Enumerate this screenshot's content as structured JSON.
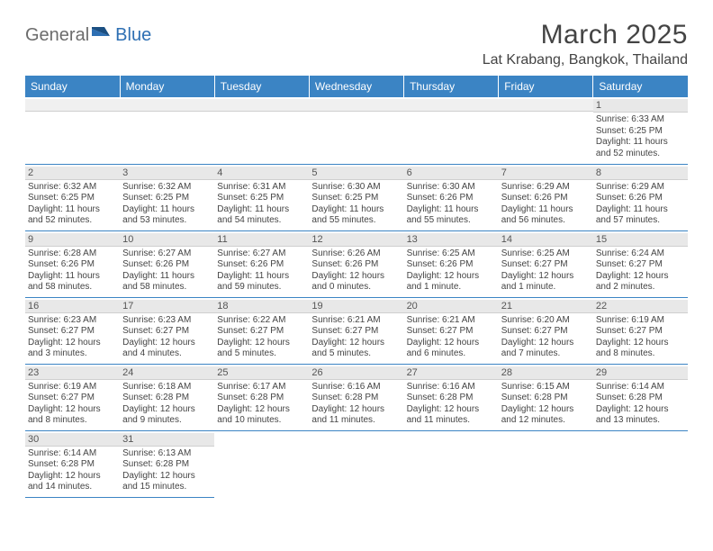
{
  "brand": {
    "part1": "General",
    "part2": "Blue"
  },
  "title": "March 2025",
  "location": "Lat Krabang, Bangkok, Thailand",
  "colors": {
    "header_bg": "#3b84c4",
    "header_text": "#ffffff",
    "daynum_bg": "#e8e8e8",
    "border": "#3b84c4",
    "brand_gray": "#6c6c6c",
    "brand_blue": "#2d6fb3",
    "page_bg": "#ffffff",
    "text": "#444444"
  },
  "day_headers": [
    "Sunday",
    "Monday",
    "Tuesday",
    "Wednesday",
    "Thursday",
    "Friday",
    "Saturday"
  ],
  "weeks": [
    [
      null,
      null,
      null,
      null,
      null,
      null,
      {
        "n": "1",
        "sr": "Sunrise: 6:33 AM",
        "ss": "Sunset: 6:25 PM",
        "dl1": "Daylight: 11 hours",
        "dl2": "and 52 minutes."
      }
    ],
    [
      {
        "n": "2",
        "sr": "Sunrise: 6:32 AM",
        "ss": "Sunset: 6:25 PM",
        "dl1": "Daylight: 11 hours",
        "dl2": "and 52 minutes."
      },
      {
        "n": "3",
        "sr": "Sunrise: 6:32 AM",
        "ss": "Sunset: 6:25 PM",
        "dl1": "Daylight: 11 hours",
        "dl2": "and 53 minutes."
      },
      {
        "n": "4",
        "sr": "Sunrise: 6:31 AM",
        "ss": "Sunset: 6:25 PM",
        "dl1": "Daylight: 11 hours",
        "dl2": "and 54 minutes."
      },
      {
        "n": "5",
        "sr": "Sunrise: 6:30 AM",
        "ss": "Sunset: 6:25 PM",
        "dl1": "Daylight: 11 hours",
        "dl2": "and 55 minutes."
      },
      {
        "n": "6",
        "sr": "Sunrise: 6:30 AM",
        "ss": "Sunset: 6:26 PM",
        "dl1": "Daylight: 11 hours",
        "dl2": "and 55 minutes."
      },
      {
        "n": "7",
        "sr": "Sunrise: 6:29 AM",
        "ss": "Sunset: 6:26 PM",
        "dl1": "Daylight: 11 hours",
        "dl2": "and 56 minutes."
      },
      {
        "n": "8",
        "sr": "Sunrise: 6:29 AM",
        "ss": "Sunset: 6:26 PM",
        "dl1": "Daylight: 11 hours",
        "dl2": "and 57 minutes."
      }
    ],
    [
      {
        "n": "9",
        "sr": "Sunrise: 6:28 AM",
        "ss": "Sunset: 6:26 PM",
        "dl1": "Daylight: 11 hours",
        "dl2": "and 58 minutes."
      },
      {
        "n": "10",
        "sr": "Sunrise: 6:27 AM",
        "ss": "Sunset: 6:26 PM",
        "dl1": "Daylight: 11 hours",
        "dl2": "and 58 minutes."
      },
      {
        "n": "11",
        "sr": "Sunrise: 6:27 AM",
        "ss": "Sunset: 6:26 PM",
        "dl1": "Daylight: 11 hours",
        "dl2": "and 59 minutes."
      },
      {
        "n": "12",
        "sr": "Sunrise: 6:26 AM",
        "ss": "Sunset: 6:26 PM",
        "dl1": "Daylight: 12 hours",
        "dl2": "and 0 minutes."
      },
      {
        "n": "13",
        "sr": "Sunrise: 6:25 AM",
        "ss": "Sunset: 6:26 PM",
        "dl1": "Daylight: 12 hours",
        "dl2": "and 1 minute."
      },
      {
        "n": "14",
        "sr": "Sunrise: 6:25 AM",
        "ss": "Sunset: 6:27 PM",
        "dl1": "Daylight: 12 hours",
        "dl2": "and 1 minute."
      },
      {
        "n": "15",
        "sr": "Sunrise: 6:24 AM",
        "ss": "Sunset: 6:27 PM",
        "dl1": "Daylight: 12 hours",
        "dl2": "and 2 minutes."
      }
    ],
    [
      {
        "n": "16",
        "sr": "Sunrise: 6:23 AM",
        "ss": "Sunset: 6:27 PM",
        "dl1": "Daylight: 12 hours",
        "dl2": "and 3 minutes."
      },
      {
        "n": "17",
        "sr": "Sunrise: 6:23 AM",
        "ss": "Sunset: 6:27 PM",
        "dl1": "Daylight: 12 hours",
        "dl2": "and 4 minutes."
      },
      {
        "n": "18",
        "sr": "Sunrise: 6:22 AM",
        "ss": "Sunset: 6:27 PM",
        "dl1": "Daylight: 12 hours",
        "dl2": "and 5 minutes."
      },
      {
        "n": "19",
        "sr": "Sunrise: 6:21 AM",
        "ss": "Sunset: 6:27 PM",
        "dl1": "Daylight: 12 hours",
        "dl2": "and 5 minutes."
      },
      {
        "n": "20",
        "sr": "Sunrise: 6:21 AM",
        "ss": "Sunset: 6:27 PM",
        "dl1": "Daylight: 12 hours",
        "dl2": "and 6 minutes."
      },
      {
        "n": "21",
        "sr": "Sunrise: 6:20 AM",
        "ss": "Sunset: 6:27 PM",
        "dl1": "Daylight: 12 hours",
        "dl2": "and 7 minutes."
      },
      {
        "n": "22",
        "sr": "Sunrise: 6:19 AM",
        "ss": "Sunset: 6:27 PM",
        "dl1": "Daylight: 12 hours",
        "dl2": "and 8 minutes."
      }
    ],
    [
      {
        "n": "23",
        "sr": "Sunrise: 6:19 AM",
        "ss": "Sunset: 6:27 PM",
        "dl1": "Daylight: 12 hours",
        "dl2": "and 8 minutes."
      },
      {
        "n": "24",
        "sr": "Sunrise: 6:18 AM",
        "ss": "Sunset: 6:28 PM",
        "dl1": "Daylight: 12 hours",
        "dl2": "and 9 minutes."
      },
      {
        "n": "25",
        "sr": "Sunrise: 6:17 AM",
        "ss": "Sunset: 6:28 PM",
        "dl1": "Daylight: 12 hours",
        "dl2": "and 10 minutes."
      },
      {
        "n": "26",
        "sr": "Sunrise: 6:16 AM",
        "ss": "Sunset: 6:28 PM",
        "dl1": "Daylight: 12 hours",
        "dl2": "and 11 minutes."
      },
      {
        "n": "27",
        "sr": "Sunrise: 6:16 AM",
        "ss": "Sunset: 6:28 PM",
        "dl1": "Daylight: 12 hours",
        "dl2": "and 11 minutes."
      },
      {
        "n": "28",
        "sr": "Sunrise: 6:15 AM",
        "ss": "Sunset: 6:28 PM",
        "dl1": "Daylight: 12 hours",
        "dl2": "and 12 minutes."
      },
      {
        "n": "29",
        "sr": "Sunrise: 6:14 AM",
        "ss": "Sunset: 6:28 PM",
        "dl1": "Daylight: 12 hours",
        "dl2": "and 13 minutes."
      }
    ],
    [
      {
        "n": "30",
        "sr": "Sunrise: 6:14 AM",
        "ss": "Sunset: 6:28 PM",
        "dl1": "Daylight: 12 hours",
        "dl2": "and 14 minutes."
      },
      {
        "n": "31",
        "sr": "Sunrise: 6:13 AM",
        "ss": "Sunset: 6:28 PM",
        "dl1": "Daylight: 12 hours",
        "dl2": "and 15 minutes."
      },
      null,
      null,
      null,
      null,
      null
    ]
  ]
}
